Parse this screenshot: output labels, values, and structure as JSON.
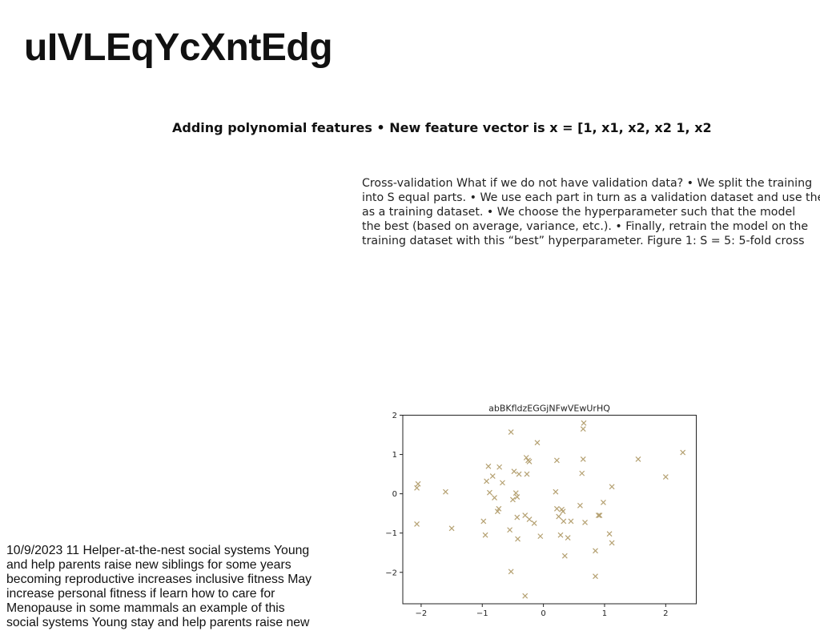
{
  "header": {
    "title": "uIVLEqYcXntEdg"
  },
  "slide": {
    "subtitle": "Adding polynomial features • New feature vector is x = [1, x1, x2, x2 1, x2"
  },
  "cv_paragraph": {
    "lines": [
      "Cross-validation What if we do not have validation data? • We split the training",
      "into S equal parts. • We use each part in turn as a validation dataset and use the",
      "as a training dataset. • We choose the hyperparameter such that the model",
      "the best (based on average, variance, etc.). • Finally, retrain the model on the",
      "training dataset with this “best” hyperparameter. Figure 1: S = 5: 5-fold cross"
    ]
  },
  "notes": {
    "lines": [
      "10/9/2023 11 Helper-at-the-nest social systems Young",
      "and help parents raise new siblings for some years",
      "becoming reproductive increases inclusive fitness May",
      "increase personal fitness if learn how to care for",
      "Menopause in some mammals an example of this",
      "social systems Young stay and help parents raise new"
    ]
  },
  "chart_data": {
    "type": "scatter",
    "title": "abBKfldzEGGjNFwVEwUrHQ",
    "xlabel": "",
    "ylabel": "",
    "xlim": [
      -2.3,
      2.5
    ],
    "ylim": [
      -2.8,
      2.0
    ],
    "xticks": [
      -2,
      -1,
      0,
      1,
      2
    ],
    "yticks": [
      -2,
      -1,
      0,
      1,
      2
    ],
    "marker": "x",
    "color": "#b5a172",
    "grid": false,
    "points": [
      [
        -2.05,
        0.25
      ],
      [
        -2.07,
        0.15
      ],
      [
        -2.07,
        -0.77
      ],
      [
        -1.6,
        0.05
      ],
      [
        -1.5,
        -0.88
      ],
      [
        -0.98,
        -0.7
      ],
      [
        -0.95,
        -1.05
      ],
      [
        -0.93,
        0.32
      ],
      [
        -0.9,
        0.7
      ],
      [
        -0.88,
        0.03
      ],
      [
        -0.83,
        0.45
      ],
      [
        -0.8,
        -0.1
      ],
      [
        -0.75,
        -0.45
      ],
      [
        -0.73,
        -0.38
      ],
      [
        -0.72,
        0.68
      ],
      [
        -0.67,
        0.28
      ],
      [
        -0.55,
        -0.92
      ],
      [
        -0.53,
        1.57
      ],
      [
        -0.53,
        -1.98
      ],
      [
        -0.5,
        -0.15
      ],
      [
        -0.48,
        0.57
      ],
      [
        -0.45,
        0.02
      ],
      [
        -0.43,
        -0.08
      ],
      [
        -0.43,
        -0.6
      ],
      [
        -0.42,
        -1.15
      ],
      [
        -0.4,
        0.5
      ],
      [
        -0.3,
        -0.55
      ],
      [
        -0.3,
        -2.6
      ],
      [
        -0.28,
        0.92
      ],
      [
        -0.27,
        0.5
      ],
      [
        -0.25,
        0.85
      ],
      [
        -0.23,
        0.82
      ],
      [
        -0.23,
        -0.65
      ],
      [
        -0.15,
        -0.75
      ],
      [
        -0.1,
        1.3
      ],
      [
        -0.05,
        -1.08
      ],
      [
        0.2,
        0.05
      ],
      [
        0.22,
        0.85
      ],
      [
        0.22,
        -0.38
      ],
      [
        0.25,
        -0.58
      ],
      [
        0.28,
        -1.05
      ],
      [
        0.3,
        -0.4
      ],
      [
        0.32,
        -0.45
      ],
      [
        0.33,
        -0.7
      ],
      [
        0.35,
        -1.58
      ],
      [
        0.4,
        -1.12
      ],
      [
        0.45,
        -0.7
      ],
      [
        0.6,
        -0.3
      ],
      [
        0.63,
        0.52
      ],
      [
        0.65,
        0.88
      ],
      [
        0.65,
        1.65
      ],
      [
        0.66,
        1.8
      ],
      [
        0.68,
        -0.73
      ],
      [
        0.85,
        -1.45
      ],
      [
        0.85,
        -2.1
      ],
      [
        0.9,
        -0.55
      ],
      [
        0.92,
        -0.55
      ],
      [
        0.98,
        -0.22
      ],
      [
        1.08,
        -1.02
      ],
      [
        1.12,
        0.18
      ],
      [
        1.12,
        -1.25
      ],
      [
        1.55,
        0.88
      ],
      [
        2.0,
        0.43
      ],
      [
        2.28,
        1.05
      ]
    ]
  }
}
